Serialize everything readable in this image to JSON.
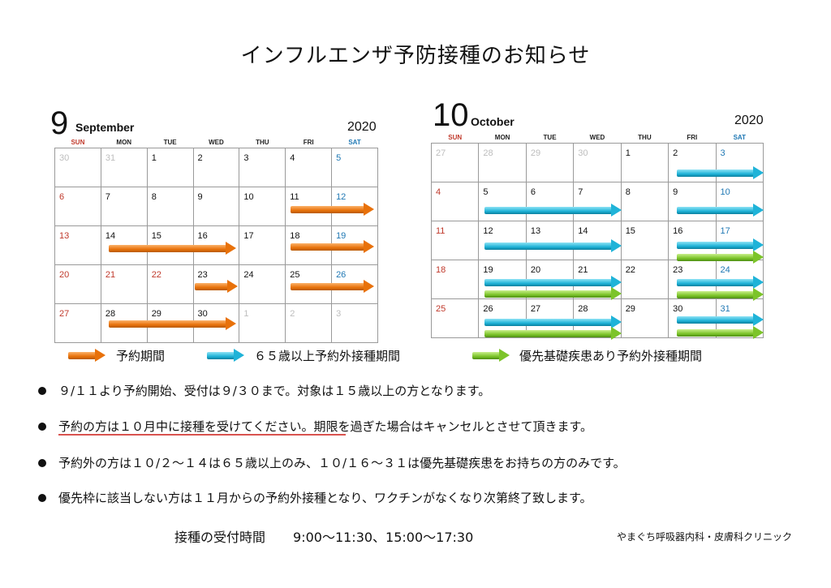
{
  "title": "インフルエンザ予防接種のお知らせ",
  "weekdays": [
    "SUN",
    "MON",
    "TUE",
    "WED",
    "THU",
    "FRI",
    "SAT"
  ],
  "september": {
    "number": "9",
    "name": "September",
    "year": "2020",
    "weeks": [
      [
        "30",
        "31",
        "1",
        "2",
        "3",
        "4",
        "5"
      ],
      [
        "6",
        "7",
        "8",
        "9",
        "10",
        "11",
        "12"
      ],
      [
        "13",
        "14",
        "15",
        "16",
        "17",
        "18",
        "19"
      ],
      [
        "20",
        "21",
        "22",
        "23",
        "24",
        "25",
        "26"
      ],
      [
        "27",
        "28",
        "29",
        "30",
        "1",
        "2",
        "3"
      ]
    ]
  },
  "october": {
    "number": "10",
    "name": "October",
    "year": "2020",
    "weeks": [
      [
        "27",
        "28",
        "29",
        "30",
        "1",
        "2",
        "3"
      ],
      [
        "4",
        "5",
        "6",
        "7",
        "8",
        "9",
        "10"
      ],
      [
        "11",
        "12",
        "13",
        "14",
        "15",
        "16",
        "17"
      ],
      [
        "18",
        "19",
        "20",
        "21",
        "22",
        "23",
        "24"
      ],
      [
        "25",
        "26",
        "27",
        "28",
        "29",
        "30",
        "31"
      ]
    ]
  },
  "legend": {
    "reservation": "予約期間",
    "over65": "６５歳以上予約外接種期間",
    "priority": "優先基礎疾患あり予約外接種期間"
  },
  "notes": [
    "９/１１より予約開始、受付は９/３０まで。対象は１５歳以上の方となります。",
    "予約の方は１０月中に接種を受けてください。期限を過ぎた場合はキャンセルとさせて頂きます。",
    "予約外の方は１０/２〜１４は６５歳以上のみ、１０/１６〜３１は優先基礎疾患をお持ちの方のみです。",
    "優先枠に該当しない方は１１月からの予約外接種となり、ワクチンがなくなり次第終了致します。"
  ],
  "hours_label": "接種の受付時間",
  "hours_value": "9:00〜11:30、15:00〜17:30",
  "clinic": "やまぐち呼吸器内科・皮膚科クリニック",
  "colors": {
    "reservation": "#e8710a",
    "over65": "#1fb3d8",
    "priority": "#7cc42a",
    "sunday": "#c0392b",
    "saturday": "#1f78b4"
  }
}
